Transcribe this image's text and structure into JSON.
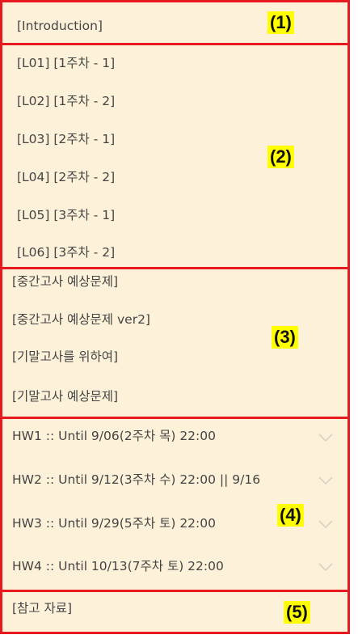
{
  "section1": {
    "label": "(1)",
    "items": [
      {
        "text": "[Introduction]"
      }
    ]
  },
  "section2": {
    "label": "(2)",
    "items": [
      {
        "text": "[L01] [1주차 - 1]"
      },
      {
        "text": "[L02] [1주차 - 2]"
      },
      {
        "text": "[L03] [2주차 - 1]"
      },
      {
        "text": "[L04] [2주차 - 2]"
      },
      {
        "text": "[L05] [3주차 - 1]"
      },
      {
        "text": "[L06] [3주차 - 2]"
      }
    ]
  },
  "section3": {
    "label": "(3)",
    "items": [
      {
        "text": "[중간고사 예상문제]"
      },
      {
        "text": "[중간고사 예상문제 ver2]"
      },
      {
        "text": "[기말고사를 위하여]"
      },
      {
        "text": "[기말고사 예상문제]"
      }
    ]
  },
  "section4": {
    "label": "(4)",
    "items": [
      {
        "text": "HW1 :: Until 9/06(2주차 목) 22:00",
        "icon": "chevron-down-icon"
      },
      {
        "text": "HW2 :: Until 9/12(3주차 수) 22:00 || 9/16",
        "icon": "chevron-down-icon"
      },
      {
        "text": "HW3 :: Until 9/29(5주차 토) 22:00",
        "icon": "chevron-down-icon"
      },
      {
        "text": "HW4 :: Until 10/13(7주차 토) 22:00",
        "icon": "chevron-down-icon"
      }
    ]
  },
  "section5": {
    "label": "(5)",
    "items": [
      {
        "text": "[참고 자료]"
      }
    ]
  },
  "colors": {
    "panel_bg": "#fdf2d9",
    "border": "#e8191f",
    "label_highlight": "#ffff00",
    "text": "#444444",
    "chevron": "#d8d2c4"
  }
}
